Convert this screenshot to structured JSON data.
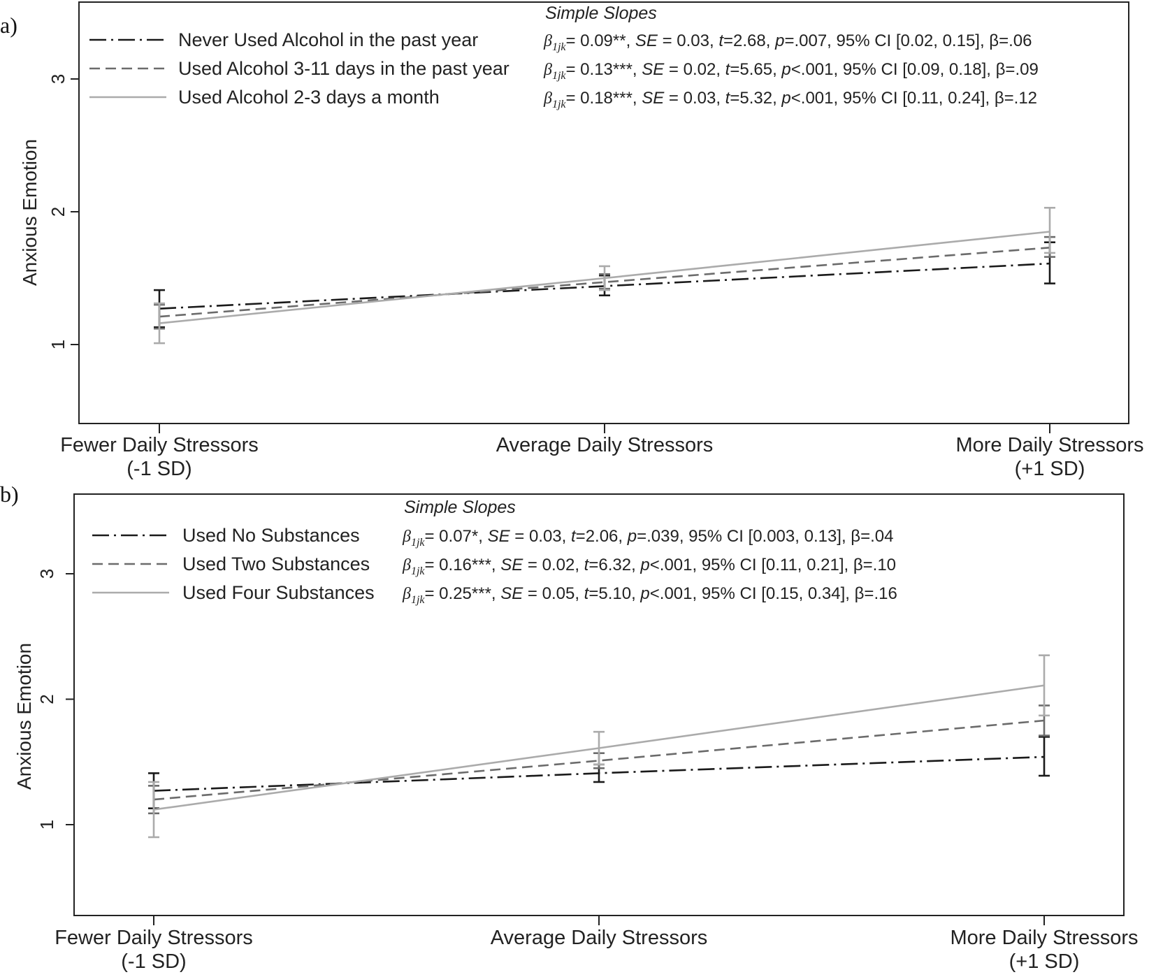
{
  "figure": {
    "width": 1654,
    "height": 1398
  },
  "chart_data": [
    {
      "panel_label": "a)",
      "type": "line",
      "ylabel": "Anxious Emotion",
      "yticks": [
        1,
        2,
        3
      ],
      "ylim": [
        0.45,
        3.6
      ],
      "xlabel": "",
      "categories": [
        [
          "Fewer Daily Stressors",
          "(-1 SD)"
        ],
        [
          "Average Daily Stressors"
        ],
        [
          "More Daily Stressors",
          "(+1 SD)"
        ]
      ],
      "legend_title": "Simple Slopes",
      "grid": false,
      "series": [
        {
          "name": "Never Used Alcohol in the past year",
          "color": "#1a1a1a",
          "dash": "dashdot",
          "values": [
            1.27,
            1.44,
            1.61
          ],
          "error_low": [
            1.13,
            1.37,
            1.46
          ],
          "error_high": [
            1.41,
            1.52,
            1.77
          ],
          "slope": {
            "coef": "= 0.09**, ",
            "se": " = 0.03, ",
            "t": "=2.68, ",
            "p": "=.007, 95% CI [0.02, 0.15], β=.06"
          }
        },
        {
          "name": "Used Alcohol 3-11 days in the past year",
          "color": "#6b6b6b",
          "dash": "dashed",
          "values": [
            1.21,
            1.47,
            1.73
          ],
          "error_low": [
            1.12,
            1.42,
            1.66
          ],
          "error_high": [
            1.3,
            1.53,
            1.81
          ],
          "slope": {
            "coef": "= 0.13***, ",
            "se": " = 0.02, ",
            "t": "=5.65, ",
            "p": "<.001, 95% CI [0.09, 0.18], β=.09"
          }
        },
        {
          "name": "Used Alcohol 2-3 days a month",
          "color": "#ababab",
          "dash": "solid",
          "values": [
            1.16,
            1.5,
            1.85
          ],
          "error_low": [
            1.01,
            1.41,
            1.69
          ],
          "error_high": [
            1.31,
            1.59,
            2.03
          ],
          "slope": {
            "coef": "= 0.18***, ",
            "se": " = 0.03, ",
            "t": "=5.32, ",
            "p": "<.001, 95% CI [0.11, 0.24], β=.12"
          }
        }
      ]
    },
    {
      "panel_label": "b)",
      "type": "line",
      "ylabel": "Anxious Emotion",
      "yticks": [
        1,
        2,
        3
      ],
      "ylim": [
        0.25,
        3.6
      ],
      "xlabel": "",
      "categories": [
        [
          "Fewer Daily Stressors",
          "(-1 SD)"
        ],
        [
          "Average Daily Stressors"
        ],
        [
          "More Daily Stressors",
          "(+1 SD)"
        ]
      ],
      "legend_title": "Simple Slopes",
      "grid": false,
      "series": [
        {
          "name": "Used No Substances",
          "color": "#1a1a1a",
          "dash": "dashdot",
          "values": [
            1.27,
            1.41,
            1.54
          ],
          "error_low": [
            1.13,
            1.34,
            1.39
          ],
          "error_high": [
            1.41,
            1.48,
            1.7
          ],
          "slope": {
            "coef": "= 0.07*, ",
            "se": " = 0.03, ",
            "t": "=2.06, ",
            "p": "=.039, 95% CI [0.003, 0.13], β=.04"
          }
        },
        {
          "name": "Used Two Substances",
          "color": "#6b6b6b",
          "dash": "dashed",
          "values": [
            1.2,
            1.51,
            1.83
          ],
          "error_low": [
            1.09,
            1.45,
            1.71
          ],
          "error_high": [
            1.31,
            1.57,
            1.95
          ],
          "slope": {
            "coef": "= 0.16***, ",
            "se": " = 0.02, ",
            "t": "=6.32, ",
            "p": "<.001, 95% CI [0.11, 0.21], β=.10"
          }
        },
        {
          "name": "Used Four Substances",
          "color": "#ababab",
          "dash": "solid",
          "values": [
            1.12,
            1.61,
            2.11
          ],
          "error_low": [
            0.9,
            1.48,
            1.87
          ],
          "error_high": [
            1.34,
            1.74,
            2.35
          ],
          "slope": {
            "coef": "= 0.25***, ",
            "se": " = 0.05, ",
            "t": "=5.10, ",
            "p": "<.001, 95% CI [0.15, 0.34], β=.16"
          }
        }
      ]
    }
  ]
}
